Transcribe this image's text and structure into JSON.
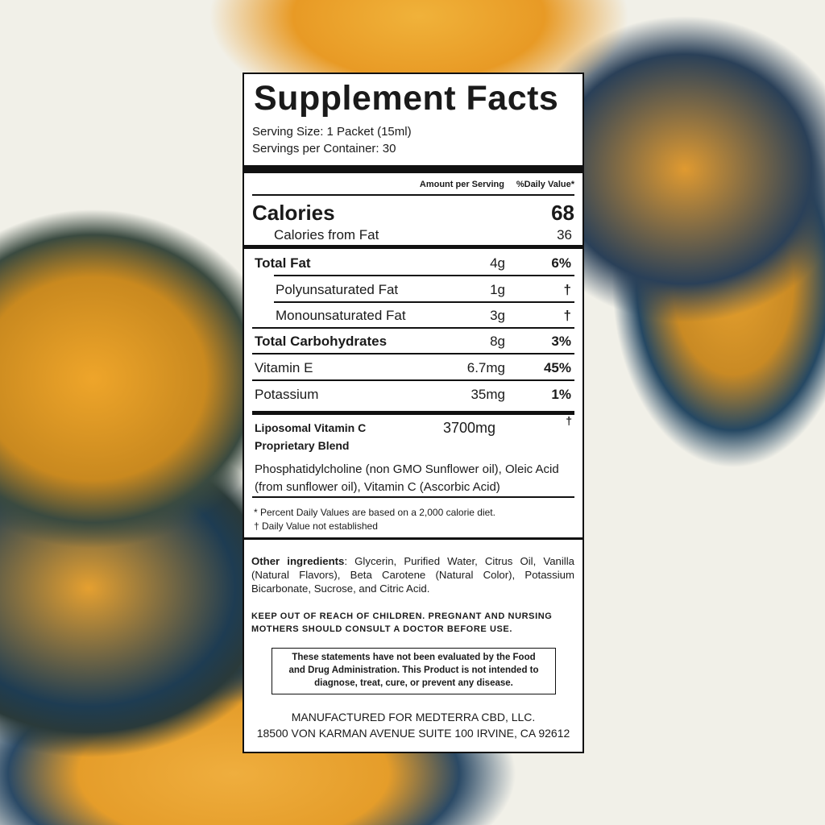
{
  "title": "Supplement Facts",
  "serving_size": "Serving Size: 1 Packet (15ml)",
  "servings_per_container": "Servings per Container: 30",
  "header": {
    "amount": "Amount per Serving",
    "dv": "%Daily Value*"
  },
  "calories": {
    "label": "Calories",
    "value": "68"
  },
  "calories_fat": {
    "label": "Calories from Fat",
    "value": "36"
  },
  "rows": [
    {
      "label": "Total Fat",
      "amount": "4g",
      "dv": "6%"
    },
    {
      "label": "Polyunsaturated Fat",
      "amount": "1g",
      "dv": "†"
    },
    {
      "label": "Monounsaturated Fat",
      "amount": "3g",
      "dv": "†"
    },
    {
      "label": "Total Carbohydrates",
      "amount": "8g",
      "dv": "3%"
    },
    {
      "label": "Vitamin E",
      "amount": "6.7mg",
      "dv": "45%"
    },
    {
      "label": "Potassium",
      "amount": "35mg",
      "dv": "1%"
    }
  ],
  "blend": {
    "line1": "Liposomal Vitamin C",
    "line2": "Proprietary Blend",
    "amount": "3700mg",
    "dv": "†",
    "ingredients1": "Phosphatidylcholine (non GMO Sunflower oil), Oleic Acid",
    "ingredients2": "(from sunflower oil), Vitamin C (Ascorbic Acid)"
  },
  "footnotes": [
    "* Percent Daily Values are based on a 2,000 calorie diet.",
    "† Daily Value not established"
  ],
  "other_label": "Other ingredients",
  "other_text": ": Glycerin, Purified Water, Citrus Oil, Vanilla (Natural Flavors), Beta Carotene (Natural Color), Potassium Bicarbonate, Sucrose, and Citric Acid.",
  "warning1": "KEEP OUT OF REACH OF CHILDREN. PREGNANT AND NURSING",
  "warning2": "MOTHERS SHOULD CONSULT A DOCTOR BEFORE USE.",
  "disclaimer": [
    "These statements have not been evaluated by the Food",
    "and Drug Administration. This Product is not intended to",
    "diagnose, treat, cure, or prevent any disease."
  ],
  "manufacturer": [
    "MANUFACTURED FOR MEDTERRA CBD, LLC.",
    "18500 VON KARMAN AVENUE SUITE 100 IRVINE, CA 92612"
  ],
  "colors": {
    "background": "#f1f0e8",
    "orange": "#e8a22a",
    "navy": "#1d3a55"
  }
}
